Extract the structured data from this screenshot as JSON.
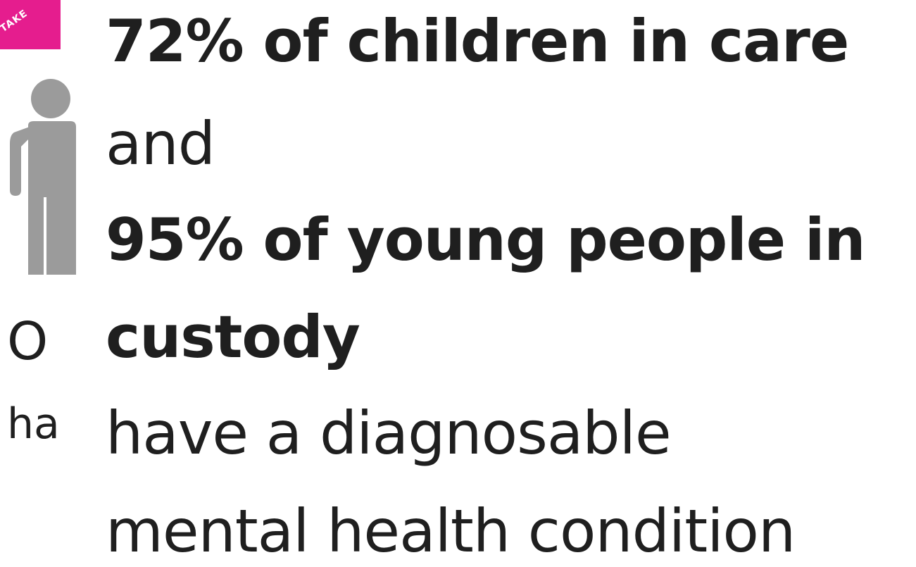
{
  "badge": {
    "label": "TAKE"
  },
  "left_partial": {
    "line1": "O",
    "line2": "ha"
  },
  "statement": {
    "line1": "72% of children in care",
    "line2": "and",
    "line3": "95% of young people in",
    "line4": "custody",
    "line5": "have a diagnosable",
    "line6": "mental health condition"
  },
  "colors": {
    "badge": "#e51d8e",
    "figure": "#9b9b9b",
    "text": "#1f1f1f"
  }
}
